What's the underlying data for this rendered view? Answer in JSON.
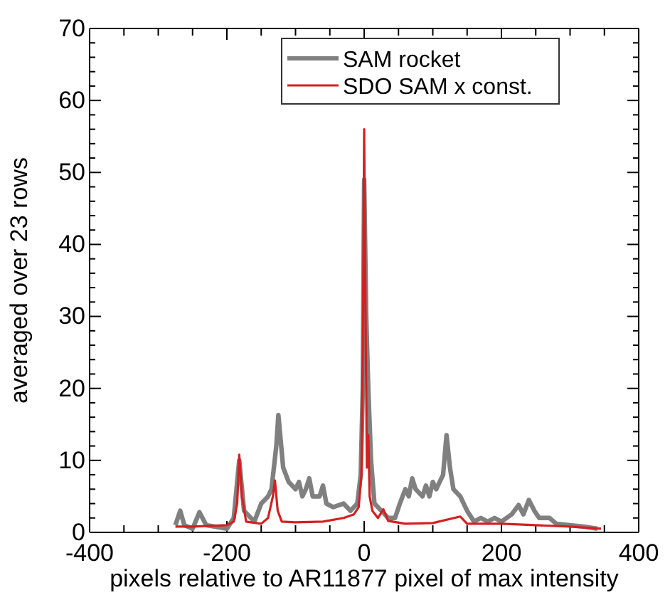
{
  "chart_data": {
    "type": "line",
    "xlabel": "pixels relative to AR11877 pixel of max  intensity",
    "ylabel": "averaged over 23 rows",
    "xlim": [
      -400,
      400
    ],
    "ylim": [
      0,
      70
    ],
    "xticks": [
      -400,
      {
        "value": -350,
        "label": null
      },
      {
        "value": -300,
        "label": null
      },
      {
        "value": -250,
        "label": null
      },
      -200,
      {
        "value": -150,
        "label": null
      },
      {
        "value": -100,
        "label": null
      },
      {
        "value": -50,
        "label": null
      },
      0,
      {
        "value": 50,
        "label": null
      },
      {
        "value": 100,
        "label": null
      },
      {
        "value": 150,
        "label": null
      },
      200,
      {
        "value": 250,
        "label": null
      },
      {
        "value": 300,
        "label": null
      },
      {
        "value": 350,
        "label": null
      },
      400
    ],
    "yticks": [
      0,
      {
        "value": 2,
        "label": null
      },
      {
        "value": 4,
        "label": null
      },
      {
        "value": 6,
        "label": null
      },
      {
        "value": 8,
        "label": null
      },
      10,
      {
        "value": 12,
        "label": null
      },
      {
        "value": 14,
        "label": null
      },
      {
        "value": 16,
        "label": null
      },
      {
        "value": 18,
        "label": null
      },
      20,
      {
        "value": 22,
        "label": null
      },
      {
        "value": 24,
        "label": null
      },
      {
        "value": 26,
        "label": null
      },
      {
        "value": 28,
        "label": null
      },
      30,
      {
        "value": 32,
        "label": null
      },
      {
        "value": 34,
        "label": null
      },
      {
        "value": 36,
        "label": null
      },
      {
        "value": 38,
        "label": null
      },
      40,
      {
        "value": 42,
        "label": null
      },
      {
        "value": 44,
        "label": null
      },
      {
        "value": 46,
        "label": null
      },
      {
        "value": 48,
        "label": null
      },
      50,
      {
        "value": 52,
        "label": null
      },
      {
        "value": 54,
        "label": null
      },
      {
        "value": 56,
        "label": null
      },
      {
        "value": 58,
        "label": null
      },
      60,
      {
        "value": 62,
        "label": null
      },
      {
        "value": 64,
        "label": null
      },
      {
        "value": 66,
        "label": null
      },
      {
        "value": 68,
        "label": null
      },
      70
    ],
    "grid": false,
    "legend": "top right",
    "series": [
      {
        "name": "SAM rocket",
        "color": "#808080",
        "x": [
          -275,
          -268,
          -262,
          -250,
          -240,
          -230,
          -200,
          -190,
          -182,
          -175,
          -160,
          -150,
          -140,
          -135,
          -128,
          -125,
          -118,
          -110,
          -100,
          -95,
          -90,
          -85,
          -80,
          -75,
          -65,
          -60,
          -55,
          -45,
          -30,
          -20,
          -10,
          -5,
          -2,
          0,
          3,
          6,
          10,
          15,
          25,
          35,
          45,
          52,
          60,
          65,
          70,
          75,
          85,
          90,
          95,
          100,
          105,
          110,
          115,
          120,
          125,
          130,
          140,
          150,
          160,
          170,
          180,
          190,
          200,
          215,
          225,
          232,
          240,
          248,
          255,
          270,
          280,
          300,
          320,
          340
        ],
        "values": [
          1,
          3,
          1,
          0.5,
          2.8,
          1,
          0.5,
          2,
          10,
          3,
          1.5,
          4,
          5,
          6,
          12,
          16.3,
          9,
          7,
          6,
          7,
          5,
          6,
          7.5,
          5,
          5,
          6.5,
          4,
          3.5,
          4,
          3,
          4,
          8,
          20,
          49,
          30,
          20,
          10,
          4,
          3,
          2,
          2,
          4,
          6,
          5,
          7.5,
          6,
          5,
          6.5,
          5,
          7,
          6,
          7,
          8,
          13.5,
          9,
          6,
          5,
          3,
          1.5,
          2,
          1.5,
          2,
          1.5,
          2.5,
          3.8,
          2.5,
          4.5,
          3,
          2,
          2,
          1.2,
          1,
          0.8,
          0.5
        ]
      },
      {
        "name": "SDO SAM x const.",
        "color": "#d42020",
        "x": [
          -275,
          -250,
          -200,
          -190,
          -185,
          -182,
          -178,
          -172,
          -150,
          -140,
          -133,
          -130,
          -126,
          -120,
          -100,
          -60,
          -30,
          -15,
          -8,
          -4,
          -2,
          0,
          2,
          4,
          6,
          8,
          12,
          20,
          28,
          35,
          60,
          100,
          140,
          150,
          200,
          250,
          300,
          345
        ],
        "values": [
          0.8,
          0.8,
          1,
          1.5,
          4,
          10.8,
          5,
          1.5,
          1.2,
          2,
          5,
          7.2,
          3,
          1.5,
          1.4,
          1.5,
          2,
          2.5,
          3.5,
          8,
          25,
          56,
          30,
          9,
          13.5,
          5,
          3,
          2,
          3.2,
          1.6,
          1.2,
          1.3,
          2.2,
          1.2,
          1.2,
          1,
          0.8,
          0.5
        ]
      }
    ]
  }
}
